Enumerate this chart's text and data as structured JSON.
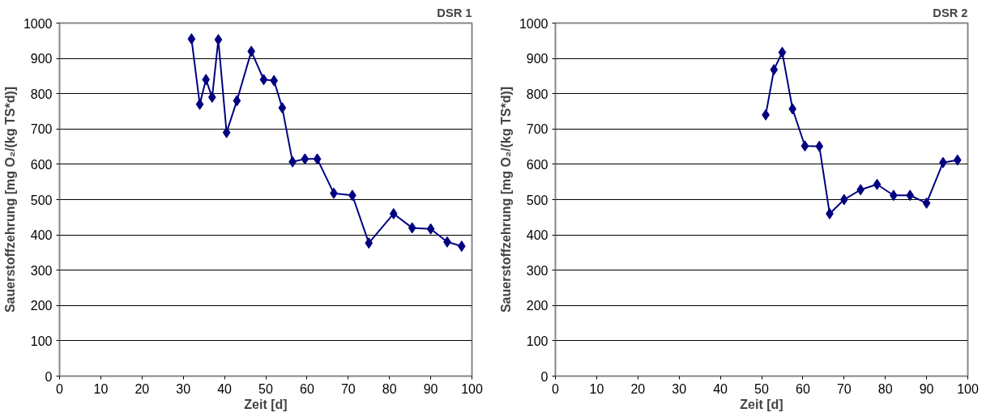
{
  "chart_data": [
    {
      "type": "line",
      "title": "DSR 1",
      "xlabel": "Zeit [d]",
      "ylabel": "Sauerstoffzehrung [mg O₂/(kg TS*d)]",
      "x": [
        32,
        34,
        35.5,
        37,
        38.5,
        40.5,
        43,
        46.5,
        49.5,
        52,
        54,
        56.5,
        59.5,
        62.5,
        66.5,
        71,
        75,
        81,
        85.5,
        90,
        94,
        97.5
      ],
      "series": [
        {
          "color": "#000080",
          "values": [
            955,
            770,
            840,
            790,
            953,
            690,
            780,
            920,
            840,
            837,
            760,
            607,
            615,
            615,
            518,
            512,
            377,
            460,
            420,
            417,
            380,
            368
          ]
        }
      ],
      "xlim": [
        0,
        100
      ],
      "xticks": [
        0,
        10,
        20,
        30,
        40,
        50,
        60,
        70,
        80,
        90,
        100
      ],
      "ylim": [
        0,
        1000
      ],
      "yticks": [
        0,
        100,
        200,
        300,
        400,
        500,
        600,
        700,
        800,
        900,
        1000
      ],
      "grid": "y",
      "marker": "diamond",
      "line_style": "solid"
    },
    {
      "type": "line",
      "title": "DSR 2",
      "xlabel": "Zeit [d]",
      "ylabel": "Sauerstoffzehrung [mg O₂/(kg TS*d)]",
      "x": [
        51,
        53,
        55,
        57.5,
        60.5,
        64,
        66.5,
        70,
        74,
        78,
        82,
        86,
        90,
        94,
        97.5
      ],
      "series": [
        {
          "color": "#000080",
          "values": [
            740,
            868,
            917,
            757,
            652,
            651,
            460,
            500,
            528,
            543,
            512,
            512,
            490,
            605,
            612
          ]
        }
      ],
      "xlim": [
        0,
        100
      ],
      "xticks": [
        0,
        10,
        20,
        30,
        40,
        50,
        60,
        70,
        80,
        90,
        100
      ],
      "ylim": [
        0,
        1000
      ],
      "yticks": [
        0,
        100,
        200,
        300,
        400,
        500,
        600,
        700,
        800,
        900,
        1000
      ],
      "grid": "y",
      "marker": "diamond",
      "line_style": "solid"
    }
  ]
}
